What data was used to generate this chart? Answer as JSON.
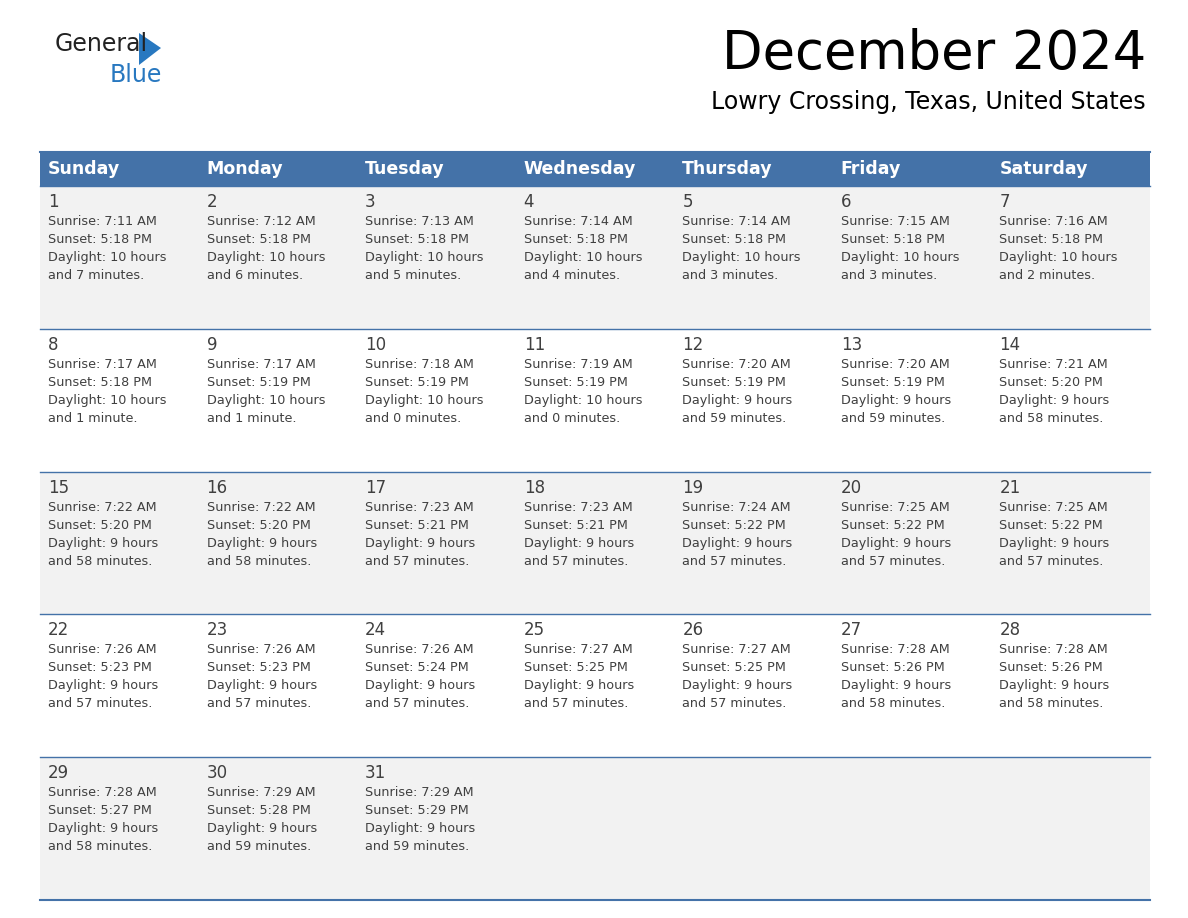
{
  "title": "December 2024",
  "subtitle": "Lowry Crossing, Texas, United States",
  "header_color": "#4472a8",
  "header_text_color": "#ffffff",
  "cell_bg_odd": "#f2f2f2",
  "cell_bg_even": "#ffffff",
  "day_headers": [
    "Sunday",
    "Monday",
    "Tuesday",
    "Wednesday",
    "Thursday",
    "Friday",
    "Saturday"
  ],
  "title_fontsize": 38,
  "subtitle_fontsize": 17,
  "header_fontsize": 12.5,
  "day_num_fontsize": 12,
  "cell_fontsize": 9.2,
  "grid_line_color": "#4472a8",
  "text_color": "#404040",
  "logo_general_color": "#222222",
  "logo_blue_color": "#2878c0",
  "logo_triangle_color": "#2878c0",
  "days": [
    {
      "day": 1,
      "col": 0,
      "row": 0,
      "sunrise": "7:11 AM",
      "sunset": "5:18 PM",
      "daylight_hours": 10,
      "daylight_minutes": 7
    },
    {
      "day": 2,
      "col": 1,
      "row": 0,
      "sunrise": "7:12 AM",
      "sunset": "5:18 PM",
      "daylight_hours": 10,
      "daylight_minutes": 6
    },
    {
      "day": 3,
      "col": 2,
      "row": 0,
      "sunrise": "7:13 AM",
      "sunset": "5:18 PM",
      "daylight_hours": 10,
      "daylight_minutes": 5
    },
    {
      "day": 4,
      "col": 3,
      "row": 0,
      "sunrise": "7:14 AM",
      "sunset": "5:18 PM",
      "daylight_hours": 10,
      "daylight_minutes": 4
    },
    {
      "day": 5,
      "col": 4,
      "row": 0,
      "sunrise": "7:14 AM",
      "sunset": "5:18 PM",
      "daylight_hours": 10,
      "daylight_minutes": 3
    },
    {
      "day": 6,
      "col": 5,
      "row": 0,
      "sunrise": "7:15 AM",
      "sunset": "5:18 PM",
      "daylight_hours": 10,
      "daylight_minutes": 3
    },
    {
      "day": 7,
      "col": 6,
      "row": 0,
      "sunrise": "7:16 AM",
      "sunset": "5:18 PM",
      "daylight_hours": 10,
      "daylight_minutes": 2
    },
    {
      "day": 8,
      "col": 0,
      "row": 1,
      "sunrise": "7:17 AM",
      "sunset": "5:18 PM",
      "daylight_hours": 10,
      "daylight_minutes": 1
    },
    {
      "day": 9,
      "col": 1,
      "row": 1,
      "sunrise": "7:17 AM",
      "sunset": "5:19 PM",
      "daylight_hours": 10,
      "daylight_minutes": 1
    },
    {
      "day": 10,
      "col": 2,
      "row": 1,
      "sunrise": "7:18 AM",
      "sunset": "5:19 PM",
      "daylight_hours": 10,
      "daylight_minutes": 0
    },
    {
      "day": 11,
      "col": 3,
      "row": 1,
      "sunrise": "7:19 AM",
      "sunset": "5:19 PM",
      "daylight_hours": 10,
      "daylight_minutes": 0
    },
    {
      "day": 12,
      "col": 4,
      "row": 1,
      "sunrise": "7:20 AM",
      "sunset": "5:19 PM",
      "daylight_hours": 9,
      "daylight_minutes": 59
    },
    {
      "day": 13,
      "col": 5,
      "row": 1,
      "sunrise": "7:20 AM",
      "sunset": "5:19 PM",
      "daylight_hours": 9,
      "daylight_minutes": 59
    },
    {
      "day": 14,
      "col": 6,
      "row": 1,
      "sunrise": "7:21 AM",
      "sunset": "5:20 PM",
      "daylight_hours": 9,
      "daylight_minutes": 58
    },
    {
      "day": 15,
      "col": 0,
      "row": 2,
      "sunrise": "7:22 AM",
      "sunset": "5:20 PM",
      "daylight_hours": 9,
      "daylight_minutes": 58
    },
    {
      "day": 16,
      "col": 1,
      "row": 2,
      "sunrise": "7:22 AM",
      "sunset": "5:20 PM",
      "daylight_hours": 9,
      "daylight_minutes": 58
    },
    {
      "day": 17,
      "col": 2,
      "row": 2,
      "sunrise": "7:23 AM",
      "sunset": "5:21 PM",
      "daylight_hours": 9,
      "daylight_minutes": 57
    },
    {
      "day": 18,
      "col": 3,
      "row": 2,
      "sunrise": "7:23 AM",
      "sunset": "5:21 PM",
      "daylight_hours": 9,
      "daylight_minutes": 57
    },
    {
      "day": 19,
      "col": 4,
      "row": 2,
      "sunrise": "7:24 AM",
      "sunset": "5:22 PM",
      "daylight_hours": 9,
      "daylight_minutes": 57
    },
    {
      "day": 20,
      "col": 5,
      "row": 2,
      "sunrise": "7:25 AM",
      "sunset": "5:22 PM",
      "daylight_hours": 9,
      "daylight_minutes": 57
    },
    {
      "day": 21,
      "col": 6,
      "row": 2,
      "sunrise": "7:25 AM",
      "sunset": "5:22 PM",
      "daylight_hours": 9,
      "daylight_minutes": 57
    },
    {
      "day": 22,
      "col": 0,
      "row": 3,
      "sunrise": "7:26 AM",
      "sunset": "5:23 PM",
      "daylight_hours": 9,
      "daylight_minutes": 57
    },
    {
      "day": 23,
      "col": 1,
      "row": 3,
      "sunrise": "7:26 AM",
      "sunset": "5:23 PM",
      "daylight_hours": 9,
      "daylight_minutes": 57
    },
    {
      "day": 24,
      "col": 2,
      "row": 3,
      "sunrise": "7:26 AM",
      "sunset": "5:24 PM",
      "daylight_hours": 9,
      "daylight_minutes": 57
    },
    {
      "day": 25,
      "col": 3,
      "row": 3,
      "sunrise": "7:27 AM",
      "sunset": "5:25 PM",
      "daylight_hours": 9,
      "daylight_minutes": 57
    },
    {
      "day": 26,
      "col": 4,
      "row": 3,
      "sunrise": "7:27 AM",
      "sunset": "5:25 PM",
      "daylight_hours": 9,
      "daylight_minutes": 57
    },
    {
      "day": 27,
      "col": 5,
      "row": 3,
      "sunrise": "7:28 AM",
      "sunset": "5:26 PM",
      "daylight_hours": 9,
      "daylight_minutes": 58
    },
    {
      "day": 28,
      "col": 6,
      "row": 3,
      "sunrise": "7:28 AM",
      "sunset": "5:26 PM",
      "daylight_hours": 9,
      "daylight_minutes": 58
    },
    {
      "day": 29,
      "col": 0,
      "row": 4,
      "sunrise": "7:28 AM",
      "sunset": "5:27 PM",
      "daylight_hours": 9,
      "daylight_minutes": 58
    },
    {
      "day": 30,
      "col": 1,
      "row": 4,
      "sunrise": "7:29 AM",
      "sunset": "5:28 PM",
      "daylight_hours": 9,
      "daylight_minutes": 59
    },
    {
      "day": 31,
      "col": 2,
      "row": 4,
      "sunrise": "7:29 AM",
      "sunset": "5:29 PM",
      "daylight_hours": 9,
      "daylight_minutes": 59
    }
  ]
}
